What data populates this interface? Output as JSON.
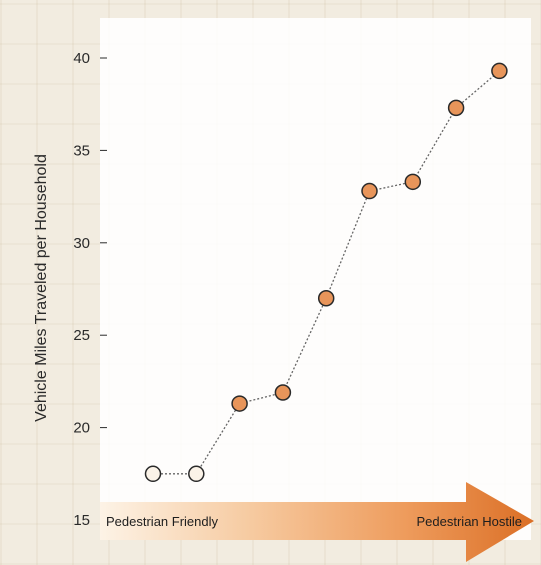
{
  "chart_data": {
    "type": "scatter",
    "title": "",
    "ylabel": "Vehicle Miles Traveled per Household",
    "xlabel_left": "Pedestrian Friendly",
    "xlabel_right": "Pedestrian Hostile",
    "ylim": [
      15,
      42
    ],
    "yticks": [
      15,
      20,
      25,
      30,
      35,
      40
    ],
    "grid": false,
    "legend": "none",
    "connected": true,
    "x": [
      1,
      2,
      3,
      4,
      5,
      6,
      7,
      8,
      9
    ],
    "y": [
      17.5,
      17.5,
      21.3,
      21.9,
      27.0,
      32.8,
      33.3,
      37.3,
      39.3
    ],
    "point_styles": [
      "hollow",
      "hollow",
      "filled",
      "filled",
      "filled",
      "filled",
      "filled",
      "filled",
      "filled"
    ],
    "colors": {
      "filled_point": "#e8955a",
      "hollow_point": "#fbf3e8",
      "point_stroke": "#2a2a2a",
      "connector": "#666666",
      "arrow_start": "#fdf3e6",
      "arrow_end": "#db6f26"
    }
  }
}
